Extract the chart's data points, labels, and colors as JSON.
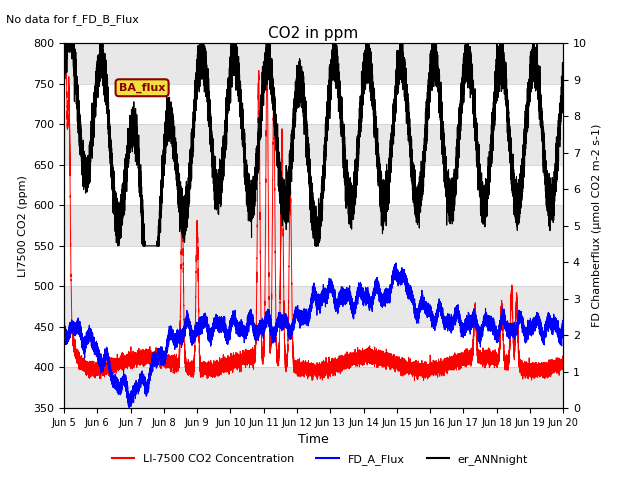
{
  "title": "CO2 in ppm",
  "note": "No data for f_FD_B_Flux",
  "ylabel_left": "LI7500 CO2 (ppm)",
  "ylabel_right": "FD Chamberflux (μmol CO2 m-2 s-1)",
  "xlabel": "Time",
  "ylim_left": [
    350,
    800
  ],
  "ylim_right": [
    0.0,
    10.0
  ],
  "yticks_left": [
    350,
    400,
    450,
    500,
    550,
    600,
    650,
    700,
    750,
    800
  ],
  "yticks_right": [
    0.0,
    1.0,
    2.0,
    3.0,
    4.0,
    5.0,
    6.0,
    7.0,
    8.0,
    9.0,
    10.0
  ],
  "xstart": 5,
  "xend": 20,
  "xtick_labels": [
    "Jun 5",
    "Jun 6",
    "Jun 7",
    "Jun 8",
    "Jun 9",
    "Jun 10",
    "Jun 11",
    "Jun 12",
    "Jun 13",
    "Jun 14",
    "Jun 15",
    "Jun 16",
    "Jun 17",
    "Jun 18",
    "Jun 19",
    "Jun 20"
  ],
  "xtick_positions": [
    5,
    6,
    7,
    8,
    9,
    10,
    11,
    12,
    13,
    14,
    15,
    16,
    17,
    18,
    19,
    20
  ],
  "legend_entries": [
    "LI-7500 CO2 Concentration",
    "FD_A_Flux",
    "er_ANNnight"
  ],
  "legend_colors": [
    "red",
    "blue",
    "black"
  ],
  "ba_flux_label": "BA_flux",
  "line_red_color": "red",
  "line_blue_color": "blue",
  "line_black_color": "black",
  "background_color": "#ffffff",
  "band_color": "#e8e8e8",
  "grid_color": "#cccccc"
}
